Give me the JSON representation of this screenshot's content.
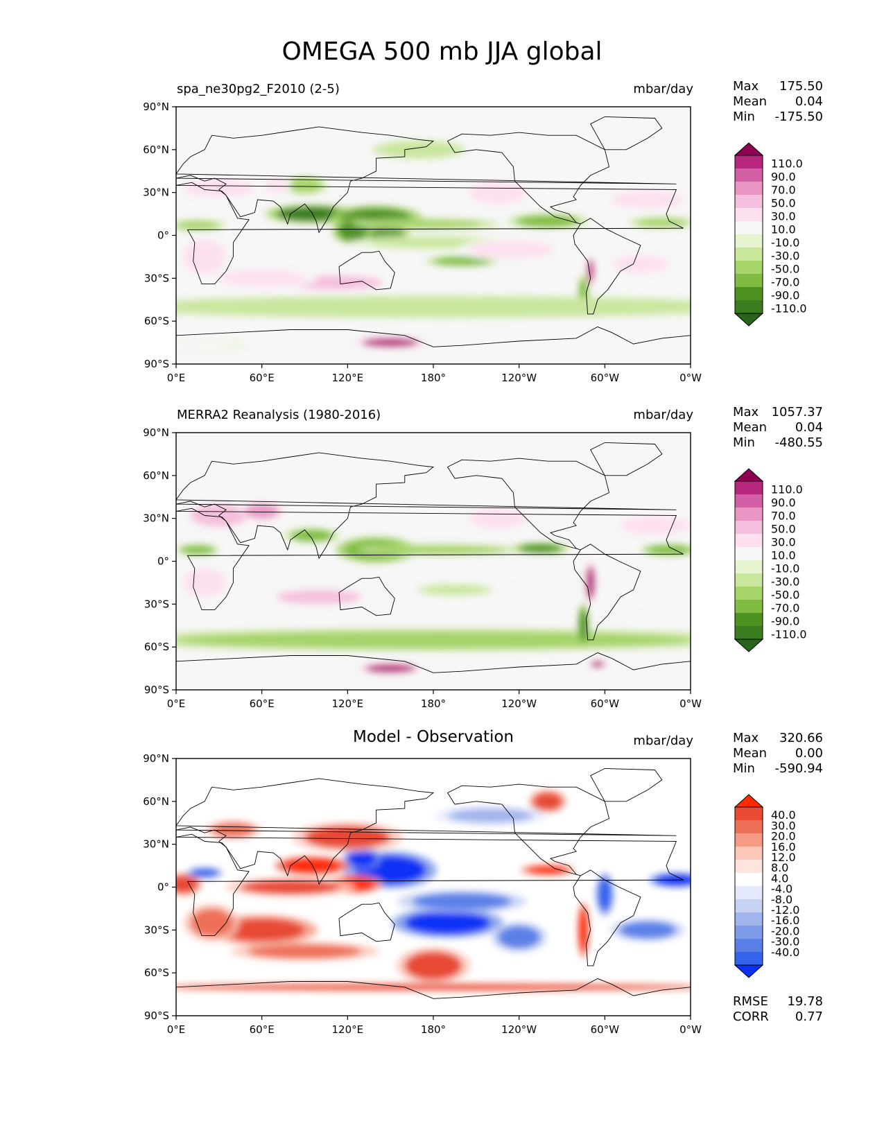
{
  "title": "OMEGA 500 mb JJA global",
  "colors": {
    "piyg": [
      "#276419",
      "#3a7d21",
      "#4d9221",
      "#7fbc41",
      "#a6d36a",
      "#c8e69c",
      "#e6f5d0",
      "#f7f7f7",
      "#fde0ef",
      "#f5c0dd",
      "#e996c4",
      "#d35fa4",
      "#b7277d",
      "#8e0152"
    ],
    "diff": [
      "#0b31f5",
      "#3464ee",
      "#5a80e8",
      "#7d9be8",
      "#a2b4ec",
      "#c5d2f4",
      "#e3e9fb",
      "#ffffff",
      "#fde5dd",
      "#fbc7b8",
      "#f59b84",
      "#ee6f58",
      "#e84a34",
      "#ff2a00"
    ]
  },
  "chart_data": [
    {
      "type": "heatmap",
      "panel_id": "model",
      "left_title": "spa_ne30pg2_F2010 (2-5)",
      "center_title": "",
      "units": "mbar/day",
      "stats": [
        {
          "label": "Max",
          "value": "175.50"
        },
        {
          "label": "Mean",
          "value": "0.04"
        },
        {
          "label": "Min",
          "value": "-175.50"
        }
      ],
      "extra_stats": [],
      "colorbar_labels": [
        "110.0",
        "90.0",
        "70.0",
        "50.0",
        "30.0",
        "10.0",
        "-10.0",
        "-30.0",
        "-50.0",
        "-70.0",
        "-90.0",
        "-110.0"
      ],
      "colormap": "piyg",
      "x_ticks": [
        "0°E",
        "60°E",
        "120°E",
        "180°",
        "120°W",
        "60°W",
        "0°W"
      ],
      "y_ticks": [
        "90°N",
        "60°N",
        "30°N",
        "0°",
        "30°S",
        "60°S",
        "90°S"
      ],
      "features": [
        {
          "lon": 95,
          "lat": 15,
          "rx": 25,
          "ry": 5,
          "v": -100
        },
        {
          "lon": 140,
          "lat": 12,
          "rx": 25,
          "ry": 7,
          "v": -90
        },
        {
          "lon": 125,
          "lat": 3,
          "rx": 12,
          "ry": 7,
          "v": -80
        },
        {
          "lon": 148,
          "lat": 0,
          "rx": 12,
          "ry": 6,
          "v": -90
        },
        {
          "lon": 175,
          "lat": 8,
          "rx": 40,
          "ry": 3,
          "v": -40
        },
        {
          "lon": 260,
          "lat": 10,
          "rx": 22,
          "ry": 4,
          "v": -60
        },
        {
          "lon": 340,
          "lat": 9,
          "rx": 18,
          "ry": 3,
          "v": -45
        },
        {
          "lon": 15,
          "lat": 7,
          "rx": 15,
          "ry": 3,
          "v": -40
        },
        {
          "lon": 200,
          "lat": -18,
          "rx": 20,
          "ry": 3,
          "v": -60
        },
        {
          "lon": 180,
          "lat": -5,
          "rx": 45,
          "ry": 4,
          "v": -20
        },
        {
          "lon": 285,
          "lat": -40,
          "rx": 3,
          "ry": 10,
          "v": -60
        },
        {
          "lon": 180,
          "lat": -50,
          "rx": 180,
          "ry": 6,
          "v": -30
        },
        {
          "lon": 90,
          "lat": 35,
          "rx": 12,
          "ry": 5,
          "v": -40
        },
        {
          "lon": 110,
          "lat": -33,
          "rx": 35,
          "ry": 5,
          "v": 60
        },
        {
          "lon": 60,
          "lat": -30,
          "rx": 30,
          "ry": 6,
          "v": 40
        },
        {
          "lon": 20,
          "lat": -15,
          "rx": 15,
          "ry": 12,
          "v": 30
        },
        {
          "lon": 30,
          "lat": 33,
          "rx": 25,
          "ry": 6,
          "v": 40
        },
        {
          "lon": 70,
          "lat": 35,
          "rx": 8,
          "ry": 5,
          "v": 40
        },
        {
          "lon": 225,
          "lat": 30,
          "rx": 20,
          "ry": 8,
          "v": 40
        },
        {
          "lon": 330,
          "lat": 25,
          "rx": 25,
          "ry": 6,
          "v": 30
        },
        {
          "lon": 235,
          "lat": -10,
          "rx": 30,
          "ry": 6,
          "v": 30
        },
        {
          "lon": 290,
          "lat": -25,
          "rx": 2,
          "ry": 8,
          "v": 120
        },
        {
          "lon": 150,
          "lat": -75,
          "rx": 20,
          "ry": 3,
          "v": 110
        },
        {
          "lon": 10,
          "lat": -77,
          "rx": 30,
          "ry": 3,
          "v": 20
        },
        {
          "lon": 170,
          "lat": 60,
          "rx": 25,
          "ry": 5,
          "v": -30
        },
        {
          "lon": 325,
          "lat": -20,
          "rx": 20,
          "ry": 6,
          "v": 30
        }
      ]
    },
    {
      "type": "heatmap",
      "panel_id": "obs",
      "left_title": "MERRA2 Reanalysis (1980-2016)",
      "center_title": "",
      "units": "mbar/day",
      "stats": [
        {
          "label": "Max",
          "value": "1057.37"
        },
        {
          "label": "Mean",
          "value": "0.04"
        },
        {
          "label": "Min",
          "value": "-480.55"
        }
      ],
      "extra_stats": [],
      "colorbar_labels": [
        "110.0",
        "90.0",
        "70.0",
        "50.0",
        "30.0",
        "10.0",
        "-10.0",
        "-30.0",
        "-50.0",
        "-70.0",
        "-90.0",
        "-110.0"
      ],
      "colormap": "piyg",
      "x_ticks": [
        "0°E",
        "60°E",
        "120°E",
        "180°",
        "120°W",
        "60°W",
        "0°W"
      ],
      "y_ticks": [
        "90°N",
        "60°N",
        "30°N",
        "0°",
        "30°S",
        "60°S",
        "90°S"
      ],
      "features": [
        {
          "lon": 140,
          "lat": 8,
          "rx": 22,
          "ry": 7,
          "v": -70
        },
        {
          "lon": 95,
          "lat": 18,
          "rx": 15,
          "ry": 4,
          "v": -60
        },
        {
          "lon": 185,
          "lat": 8,
          "rx": 45,
          "ry": 3,
          "v": -40
        },
        {
          "lon": 255,
          "lat": 9,
          "rx": 15,
          "ry": 3,
          "v": -90
        },
        {
          "lon": 345,
          "lat": 8,
          "rx": 15,
          "ry": 3,
          "v": -70
        },
        {
          "lon": 15,
          "lat": 8,
          "rx": 12,
          "ry": 3,
          "v": -60
        },
        {
          "lon": 180,
          "lat": -55,
          "rx": 180,
          "ry": 6,
          "v": -35
        },
        {
          "lon": 285,
          "lat": -45,
          "rx": 3,
          "ry": 12,
          "v": -90
        },
        {
          "lon": 195,
          "lat": -20,
          "rx": 20,
          "ry": 3,
          "v": -30
        },
        {
          "lon": 100,
          "lat": -25,
          "rx": 30,
          "ry": 5,
          "v": 50
        },
        {
          "lon": 30,
          "lat": 32,
          "rx": 20,
          "ry": 8,
          "v": 60
        },
        {
          "lon": 60,
          "lat": 35,
          "rx": 12,
          "ry": 5,
          "v": 70
        },
        {
          "lon": 225,
          "lat": 30,
          "rx": 20,
          "ry": 7,
          "v": 40
        },
        {
          "lon": 335,
          "lat": 25,
          "rx": 25,
          "ry": 6,
          "v": 30
        },
        {
          "lon": 290,
          "lat": -15,
          "rx": 3,
          "ry": 12,
          "v": 110
        },
        {
          "lon": 150,
          "lat": -75,
          "rx": 18,
          "ry": 3,
          "v": 110
        },
        {
          "lon": 20,
          "lat": -15,
          "rx": 15,
          "ry": 10,
          "v": 30
        },
        {
          "lon": 235,
          "lat": -5,
          "rx": 25,
          "ry": 6,
          "v": 25
        },
        {
          "lon": 295,
          "lat": -72,
          "rx": 5,
          "ry": 2,
          "v": 110
        },
        {
          "lon": 325,
          "lat": -25,
          "rx": 20,
          "ry": 6,
          "v": 25
        }
      ]
    },
    {
      "type": "heatmap",
      "panel_id": "diff",
      "left_title": "",
      "center_title": "Model - Observation",
      "units": "mbar/day",
      "stats": [
        {
          "label": "Max",
          "value": "320.66"
        },
        {
          "label": "Mean",
          "value": "0.00"
        },
        {
          "label": "Min",
          "value": "-590.94"
        }
      ],
      "extra_stats": [
        {
          "label": "RMSE",
          "value": "19.78"
        },
        {
          "label": "CORR",
          "value": "0.77"
        }
      ],
      "colorbar_labels": [
        "40.0",
        "30.0",
        "20.0",
        "16.0",
        "12.0",
        "8.0",
        "4.0",
        "-4.0",
        "-8.0",
        "-12.0",
        "-16.0",
        "-20.0",
        "-30.0",
        "-40.0"
      ],
      "colormap": "diff",
      "x_ticks": [
        "0°E",
        "60°E",
        "120°E",
        "180°",
        "120°W",
        "60°W",
        "0°W"
      ],
      "y_ticks": [
        "90°N",
        "60°N",
        "30°N",
        "0°",
        "30°S",
        "60°S",
        "90°S"
      ],
      "features": [
        {
          "lon": 150,
          "lat": 12,
          "rx": 25,
          "ry": 10,
          "v": -40
        },
        {
          "lon": 130,
          "lat": 20,
          "rx": 10,
          "ry": 6,
          "v": -40
        },
        {
          "lon": 190,
          "lat": -25,
          "rx": 30,
          "ry": 8,
          "v": -40
        },
        {
          "lon": 200,
          "lat": -10,
          "rx": 35,
          "ry": 6,
          "v": -20
        },
        {
          "lon": 95,
          "lat": 15,
          "rx": 20,
          "ry": 5,
          "v": 40
        },
        {
          "lon": 125,
          "lat": 2,
          "rx": 15,
          "ry": 5,
          "v": 35
        },
        {
          "lon": 260,
          "lat": 12,
          "rx": 15,
          "ry": 3,
          "v": 35
        },
        {
          "lon": 80,
          "lat": 0,
          "rx": 35,
          "ry": 5,
          "v": 25
        },
        {
          "lon": 60,
          "lat": -30,
          "rx": 30,
          "ry": 8,
          "v": 30
        },
        {
          "lon": 5,
          "lat": 2,
          "rx": 10,
          "ry": 6,
          "v": 30
        },
        {
          "lon": 25,
          "lat": -25,
          "rx": 15,
          "ry": 10,
          "v": 20
        },
        {
          "lon": 285,
          "lat": -30,
          "rx": 3,
          "ry": 15,
          "v": 40
        },
        {
          "lon": 300,
          "lat": -5,
          "rx": 5,
          "ry": 12,
          "v": -35
        },
        {
          "lon": 350,
          "lat": 5,
          "rx": 15,
          "ry": 4,
          "v": -40
        },
        {
          "lon": 20,
          "lat": 10,
          "rx": 10,
          "ry": 3,
          "v": -30
        },
        {
          "lon": 180,
          "lat": -55,
          "rx": 20,
          "ry": 10,
          "v": 25
        },
        {
          "lon": 120,
          "lat": 35,
          "rx": 30,
          "ry": 8,
          "v": 25
        },
        {
          "lon": 90,
          "lat": -45,
          "rx": 40,
          "ry": 5,
          "v": 20
        },
        {
          "lon": 330,
          "lat": -30,
          "rx": 20,
          "ry": 6,
          "v": -20
        },
        {
          "lon": 180,
          "lat": -70,
          "rx": 180,
          "ry": 2,
          "v": 30
        },
        {
          "lon": 240,
          "lat": -35,
          "rx": 15,
          "ry": 8,
          "v": -20
        },
        {
          "lon": 40,
          "lat": 40,
          "rx": 15,
          "ry": 5,
          "v": 20
        },
        {
          "lon": 260,
          "lat": 60,
          "rx": 10,
          "ry": 6,
          "v": 30
        },
        {
          "lon": 220,
          "lat": 50,
          "rx": 30,
          "ry": 5,
          "v": -15
        }
      ]
    }
  ]
}
